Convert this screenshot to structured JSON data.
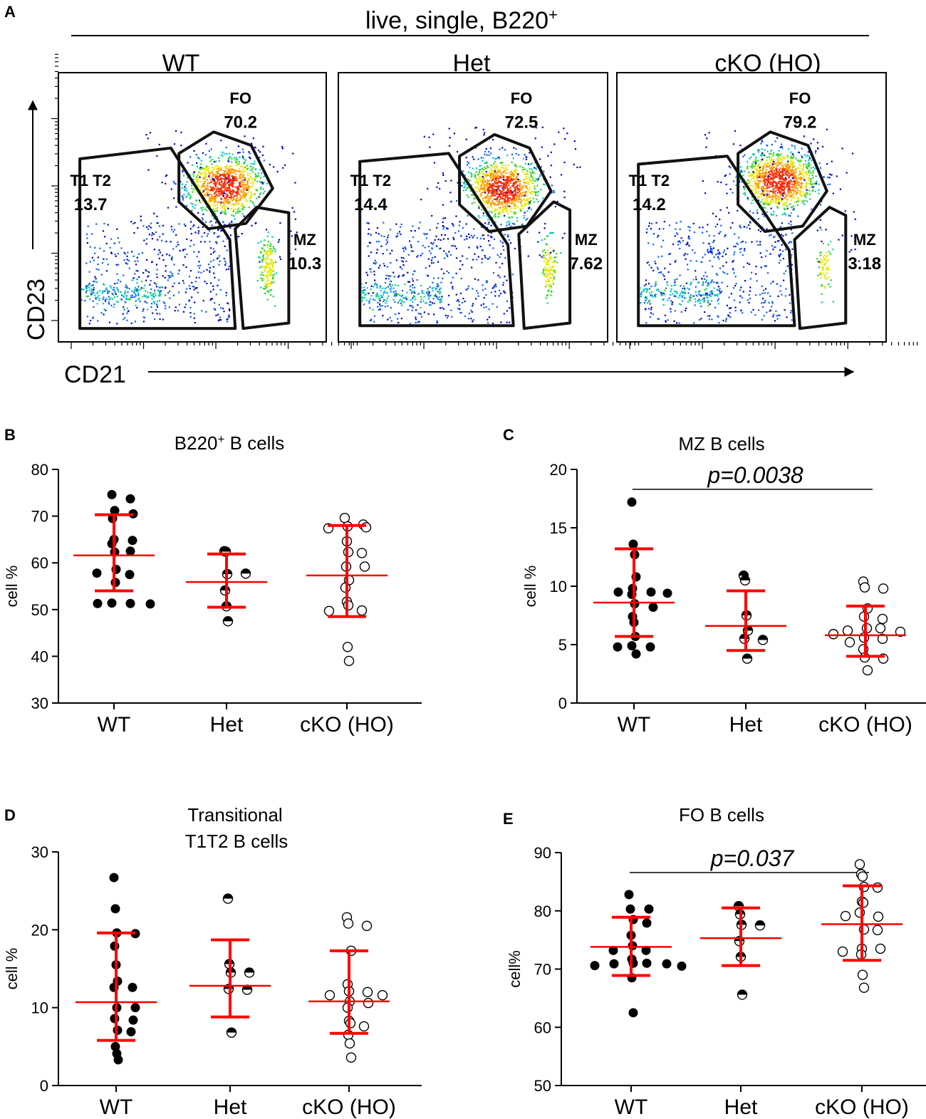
{
  "panel_a": {
    "letter": "A",
    "header": "live, single, B220",
    "header_sup": "+",
    "y_axis": "CD23",
    "x_axis": "CD21",
    "samples": [
      {
        "name": "WT",
        "gates": [
          {
            "label": "FO",
            "value": "70.2"
          },
          {
            "label": "T1 T2",
            "value": "13.7"
          },
          {
            "label": "MZ",
            "value": "10.3"
          }
        ]
      },
      {
        "name": "Het",
        "gates": [
          {
            "label": "FO",
            "value": "72.5"
          },
          {
            "label": "T1 T2",
            "value": "14.4"
          },
          {
            "label": "MZ",
            "value": "7.62"
          }
        ]
      },
      {
        "name": "cKO (HO)",
        "gates": [
          {
            "label": "FO",
            "value": "79.2"
          },
          {
            "label": "T1 T2",
            "value": "14.2"
          },
          {
            "label": "MZ",
            "value": "3.18"
          }
        ]
      }
    ]
  },
  "colors": {
    "error_bar": "#ff0000",
    "point": "#000000"
  },
  "chart_data": [
    {
      "panel": "B",
      "type": "scatter",
      "title": "B220",
      "title_sup": "+",
      "title_rest": " B cells",
      "ylabel": "cell %",
      "ylim": [
        30,
        80
      ],
      "yticks": [
        30,
        40,
        50,
        60,
        70,
        80
      ],
      "categories": [
        "WT",
        "Het",
        "cKO (HO)"
      ],
      "groups": [
        {
          "name": "WT",
          "marker": "filled",
          "mean": 61.6,
          "sd_low": 54.0,
          "sd_high": 70.3,
          "values": [
            74.6,
            73.7,
            71.2,
            70.5,
            69.5,
            65.0,
            64.8,
            64.1,
            62.5,
            62.3,
            58.6,
            57.5,
            57.8,
            55.8,
            51.4,
            51.3,
            51.3,
            51.2
          ]
        },
        {
          "name": "Het",
          "marker": "half",
          "mean": 55.9,
          "sd_low": 50.5,
          "sd_high": 61.9,
          "values": [
            62.5,
            62.4,
            57.6,
            57.7,
            54.1,
            50.7,
            47.5
          ]
        },
        {
          "name": "cKO (HO)",
          "marker": "open",
          "mean": 57.3,
          "sd_low": 48.5,
          "sd_high": 68.0,
          "values": [
            69.6,
            68.2,
            67.8,
            67.6,
            67.4,
            64.6,
            62.3,
            62.1,
            59.2,
            59.2,
            56.3,
            54.7,
            51.7,
            50.9,
            49.8,
            49.7,
            42.0,
            39.0
          ]
        }
      ]
    },
    {
      "panel": "C",
      "type": "scatter",
      "title": "MZ B cells",
      "ylabel": "cell %",
      "ylim": [
        0,
        20
      ],
      "yticks": [
        0,
        5,
        10,
        15,
        20
      ],
      "categories": [
        "WT",
        "Het",
        "cKO (HO)"
      ],
      "annotation": "p=0.0038",
      "bracket": [
        "WT",
        "cKO (HO)"
      ],
      "groups": [
        {
          "name": "WT",
          "marker": "filled",
          "mean": 8.6,
          "sd_low": 5.7,
          "sd_high": 13.2,
          "values": [
            17.2,
            13.6,
            12.7,
            10.8,
            9.8,
            9.5,
            9.5,
            9.3,
            9.4,
            8.5,
            8.2,
            7.4,
            6.9,
            5.7,
            4.9,
            4.8,
            4.8,
            4.2
          ]
        },
        {
          "name": "Het",
          "marker": "half",
          "mean": 6.6,
          "sd_low": 4.5,
          "sd_high": 9.6,
          "values": [
            10.9,
            10.5,
            7.5,
            6.2,
            5.5,
            5.4,
            3.8
          ]
        },
        {
          "name": "cKO (HO)",
          "marker": "open",
          "mean": 5.8,
          "sd_low": 4.0,
          "sd_high": 8.3,
          "values": [
            10.4,
            9.9,
            9.8,
            8.1,
            7.4,
            7.2,
            6.4,
            6.4,
            6.2,
            6.1,
            5.9,
            5.6,
            5.5,
            5.2,
            4.6,
            3.9,
            3.8,
            2.8
          ]
        }
      ]
    },
    {
      "panel": "D",
      "type": "scatter",
      "title": "Transitional",
      "title2": "T1T2 B cells",
      "ylabel": "cell %",
      "ylim": [
        0,
        30
      ],
      "yticks": [
        0,
        10,
        20,
        30
      ],
      "categories": [
        "WT",
        "Het",
        "cKO (HO)"
      ],
      "groups": [
        {
          "name": "WT",
          "marker": "filled",
          "mean": 10.7,
          "sd_low": 5.8,
          "sd_high": 19.6,
          "values": [
            26.7,
            22.7,
            19.6,
            19.5,
            17.9,
            15.5,
            13.4,
            12.6,
            12.6,
            10.0,
            10.0,
            8.6,
            8.4,
            7.1,
            6.9,
            5.0,
            4.1,
            3.3
          ]
        },
        {
          "name": "Het",
          "marker": "half",
          "mean": 12.8,
          "sd_low": 8.8,
          "sd_high": 18.7,
          "values": [
            24.0,
            15.6,
            14.5,
            14.5,
            12.4,
            12.3,
            6.8
          ]
        },
        {
          "name": "cKO (HO)",
          "marker": "open",
          "mean": 10.8,
          "sd_low": 6.7,
          "sd_high": 17.3,
          "values": [
            21.6,
            20.8,
            20.5,
            17.3,
            13.0,
            12.1,
            12.0,
            11.6,
            11.6,
            10.8,
            10.6,
            10.0,
            8.3,
            8.0,
            7.6,
            6.5,
            5.4,
            3.6
          ]
        }
      ]
    },
    {
      "panel": "E",
      "type": "scatter",
      "title": "FO B cells",
      "ylabel": "cell%",
      "ylim": [
        50,
        90
      ],
      "yticks": [
        50,
        60,
        70,
        80,
        90
      ],
      "categories": [
        "WT",
        "Het",
        "cKO (HO)"
      ],
      "annotation": "p=0.037",
      "bracket": [
        "WT",
        "cKO (HO)"
      ],
      "groups": [
        {
          "name": "WT",
          "marker": "filled",
          "mean": 73.8,
          "sd_low": 68.9,
          "sd_high": 78.9,
          "values": [
            82.8,
            80.3,
            80.3,
            78.5,
            77.9,
            75.8,
            74.0,
            73.2,
            73.2,
            71.7,
            71.0,
            71.0,
            70.9,
            70.9,
            70.6,
            70.5,
            68.5,
            62.5
          ]
        },
        {
          "name": "Het",
          "marker": "half",
          "mean": 75.3,
          "sd_low": 70.6,
          "sd_high": 80.5,
          "values": [
            80.8,
            79.4,
            77.6,
            77.5,
            74.8,
            72.1,
            65.6
          ]
        },
        {
          "name": "cKO (HO)",
          "marker": "open",
          "mean": 77.7,
          "sd_low": 71.5,
          "sd_high": 84.3,
          "values": [
            88.0,
            86.3,
            85.9,
            84.1,
            84.0,
            81.6,
            81.4,
            79.7,
            79.0,
            79.1,
            76.8,
            76.7,
            73.5,
            73.5,
            73.0,
            72.5,
            69.0,
            66.8
          ]
        }
      ]
    }
  ]
}
